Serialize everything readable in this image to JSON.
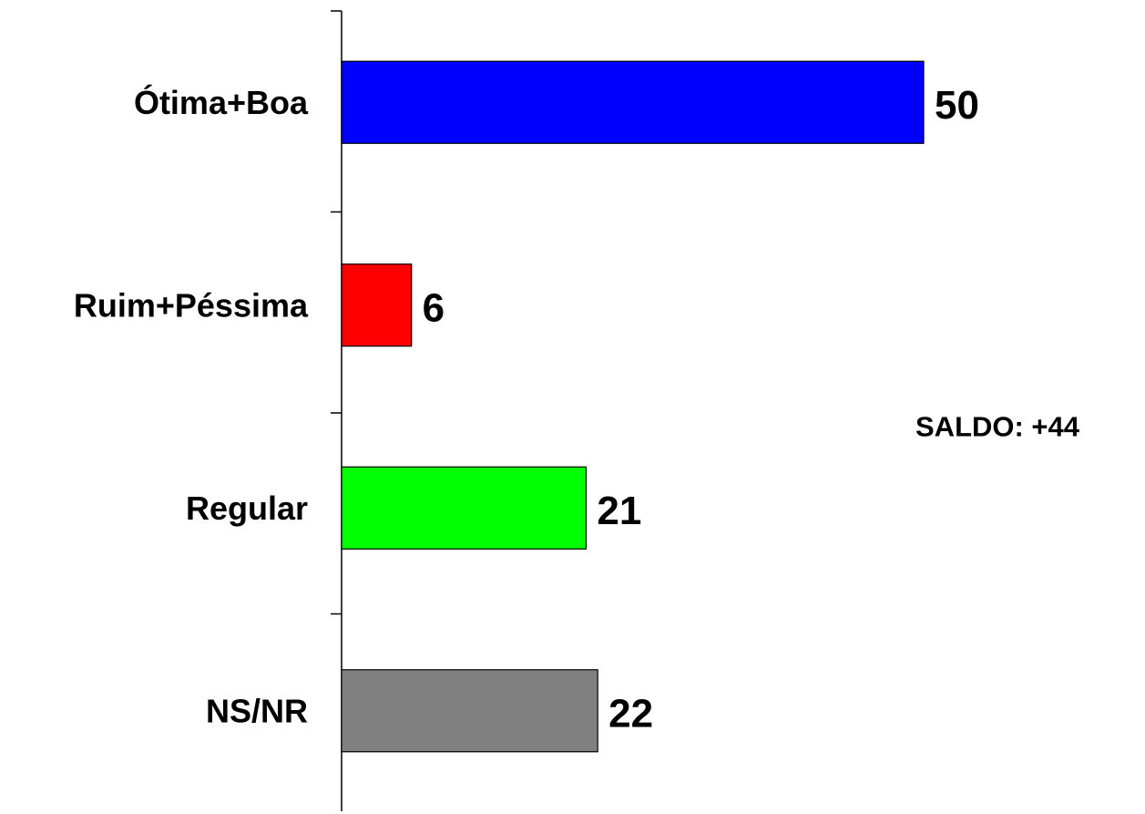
{
  "chart_data": {
    "type": "hbar",
    "categories": [
      "Ótima+Boa",
      "Ruim+Péssima",
      "Regular",
      "NS/NR"
    ],
    "values": [
      50,
      6,
      21,
      22
    ],
    "colors": [
      "#0000ff",
      "#ff0000",
      "#00ff00",
      "#808080"
    ],
    "annotation": "SALDO: +44"
  }
}
